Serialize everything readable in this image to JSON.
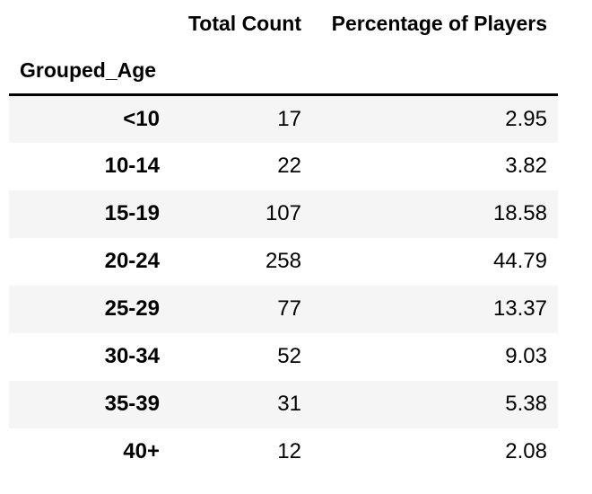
{
  "chart_data": {
    "type": "table",
    "title": "",
    "index_name": "Grouped_Age",
    "columns": [
      "Total Count",
      "Percentage of Players"
    ],
    "index": [
      "<10",
      "10-14",
      "15-19",
      "20-24",
      "25-29",
      "30-34",
      "35-39",
      "40+"
    ],
    "series": [
      {
        "name": "Total Count",
        "values": [
          17,
          22,
          107,
          258,
          77,
          52,
          31,
          12
        ]
      },
      {
        "name": "Percentage of Players",
        "values": [
          2.95,
          3.82,
          18.58,
          44.79,
          13.37,
          9.03,
          5.38,
          2.08
        ]
      }
    ]
  },
  "table": {
    "index_name": "Grouped_Age",
    "col_count_label": "Total Count",
    "col_pct_label": "Percentage of Players",
    "rows": [
      {
        "age": "<10",
        "count": "17",
        "pct": "2.95"
      },
      {
        "age": "10-14",
        "count": "22",
        "pct": "3.82"
      },
      {
        "age": "15-19",
        "count": "107",
        "pct": "18.58"
      },
      {
        "age": "20-24",
        "count": "258",
        "pct": "44.79"
      },
      {
        "age": "25-29",
        "count": "77",
        "pct": "13.37"
      },
      {
        "age": "30-34",
        "count": "52",
        "pct": "9.03"
      },
      {
        "age": "35-39",
        "count": "31",
        "pct": "5.38"
      },
      {
        "age": "40+",
        "count": "12",
        "pct": "2.08"
      }
    ],
    "colors": {
      "stripe": "#f5f5f5",
      "header_rule": "#000000",
      "text": "#000000",
      "background": "#ffffff"
    }
  }
}
